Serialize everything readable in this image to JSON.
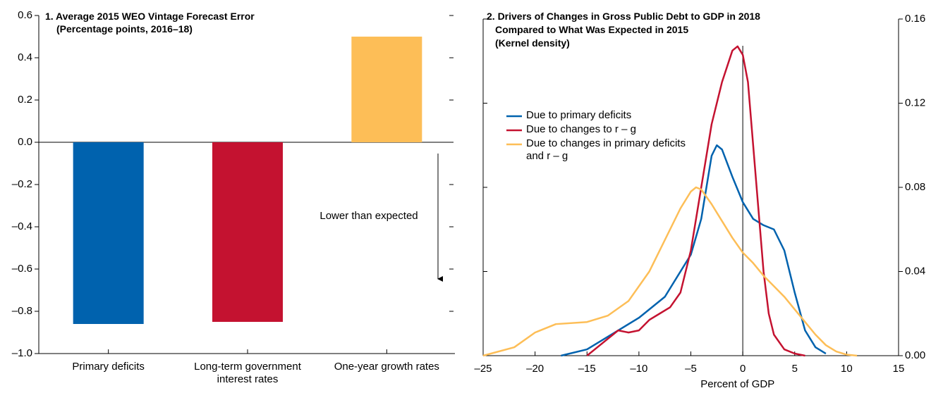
{
  "chart_data": [
    {
      "type": "bar",
      "title": "1. Average 2015 WEO Vintage Forecast Error",
      "subtitle": "(Percentage points, 2016–18)",
      "categories": [
        "Primary deficits",
        "Long-term government interest rates",
        "One-year growth rates"
      ],
      "values": [
        -0.86,
        -0.85,
        0.5
      ],
      "colors": [
        "#0062ae",
        "#c41230",
        "#fdbe57"
      ],
      "ylim": [
        -1.0,
        0.6
      ],
      "yticks": [
        {
          "value": -1.0,
          "label": "–1.0"
        },
        {
          "value": -0.8,
          "label": "–0.8"
        },
        {
          "value": -0.6,
          "label": "–0.6"
        },
        {
          "value": -0.4,
          "label": "–0.4"
        },
        {
          "value": -0.2,
          "label": "–0.2"
        },
        {
          "value": 0.0,
          "label": "0.0"
        },
        0.2,
        0.4,
        0.6
      ],
      "annotation": "Lower than expected"
    },
    {
      "type": "line",
      "title": [
        "2. Drivers of Changes in Gross Public Debt to GDP in 2018",
        "Compared to What Was Expected in 2015",
        "(Kernel density)"
      ],
      "x_label": "Percent of GDP",
      "xlim": [
        -25,
        15
      ],
      "xticks": [
        {
          "value": -25,
          "label": "–25"
        },
        {
          "value": -20,
          "label": "–20"
        },
        {
          "value": -15,
          "label": "–15"
        },
        {
          "value": -10,
          "label": "–10"
        },
        {
          "value": -5,
          "label": "–5"
        },
        0,
        5,
        10,
        15
      ],
      "y2lim": [
        0,
        0.16
      ],
      "y2ticks": [
        {
          "value": 0,
          "label": "0.00"
        },
        0.04,
        0.08,
        0.12,
        0.16
      ],
      "vline": 0,
      "legend": "left",
      "series": [
        {
          "name": "Due to primary deficits",
          "color": "#0062ae",
          "axis": "y2",
          "x": [
            -17.5,
            -15,
            -12,
            -10,
            -7.5,
            -5,
            -4,
            -3,
            -2.5,
            -2,
            -1,
            0,
            1,
            2,
            3,
            4,
            5,
            6,
            7,
            8
          ],
          "values": [
            0,
            0.003,
            0.012,
            0.018,
            0.028,
            0.048,
            0.065,
            0.095,
            0.1,
            0.098,
            0.085,
            0.073,
            0.065,
            0.062,
            0.06,
            0.05,
            0.03,
            0.012,
            0.004,
            0.001
          ]
        },
        {
          "name": "Due to changes to r – g",
          "color": "#c41230",
          "axis": "y2",
          "x": [
            -15,
            -14,
            -12.5,
            -12,
            -11,
            -10,
            -9,
            -8,
            -7,
            -6,
            -5,
            -4,
            -3,
            -2,
            -1,
            -0.5,
            0,
            0.5,
            1,
            1.5,
            2,
            2.5,
            3,
            4,
            5,
            6
          ],
          "values": [
            0,
            0.004,
            0.01,
            0.012,
            0.011,
            0.012,
            0.017,
            0.02,
            0.023,
            0.03,
            0.05,
            0.08,
            0.11,
            0.13,
            0.145,
            0.147,
            0.143,
            0.13,
            0.1,
            0.07,
            0.04,
            0.02,
            0.01,
            0.003,
            0.001,
            0
          ]
        },
        {
          "name": "Due to changes in primary deficits and r – g",
          "color": "#fdbe57",
          "axis": "y2",
          "x": [
            -25,
            -22,
            -20,
            -18,
            -15,
            -13,
            -11,
            -9,
            -7,
            -6,
            -5,
            -4.5,
            -4,
            -3,
            -2,
            -1,
            0,
            1,
            2,
            3,
            4,
            5,
            6,
            7,
            8,
            9,
            10,
            11
          ],
          "values": [
            0,
            0.004,
            0.011,
            0.015,
            0.016,
            0.019,
            0.026,
            0.04,
            0.06,
            0.07,
            0.078,
            0.08,
            0.079,
            0.072,
            0.064,
            0.056,
            0.049,
            0.044,
            0.038,
            0.033,
            0.028,
            0.022,
            0.016,
            0.01,
            0.005,
            0.002,
            0.0005,
            0
          ]
        }
      ]
    }
  ]
}
